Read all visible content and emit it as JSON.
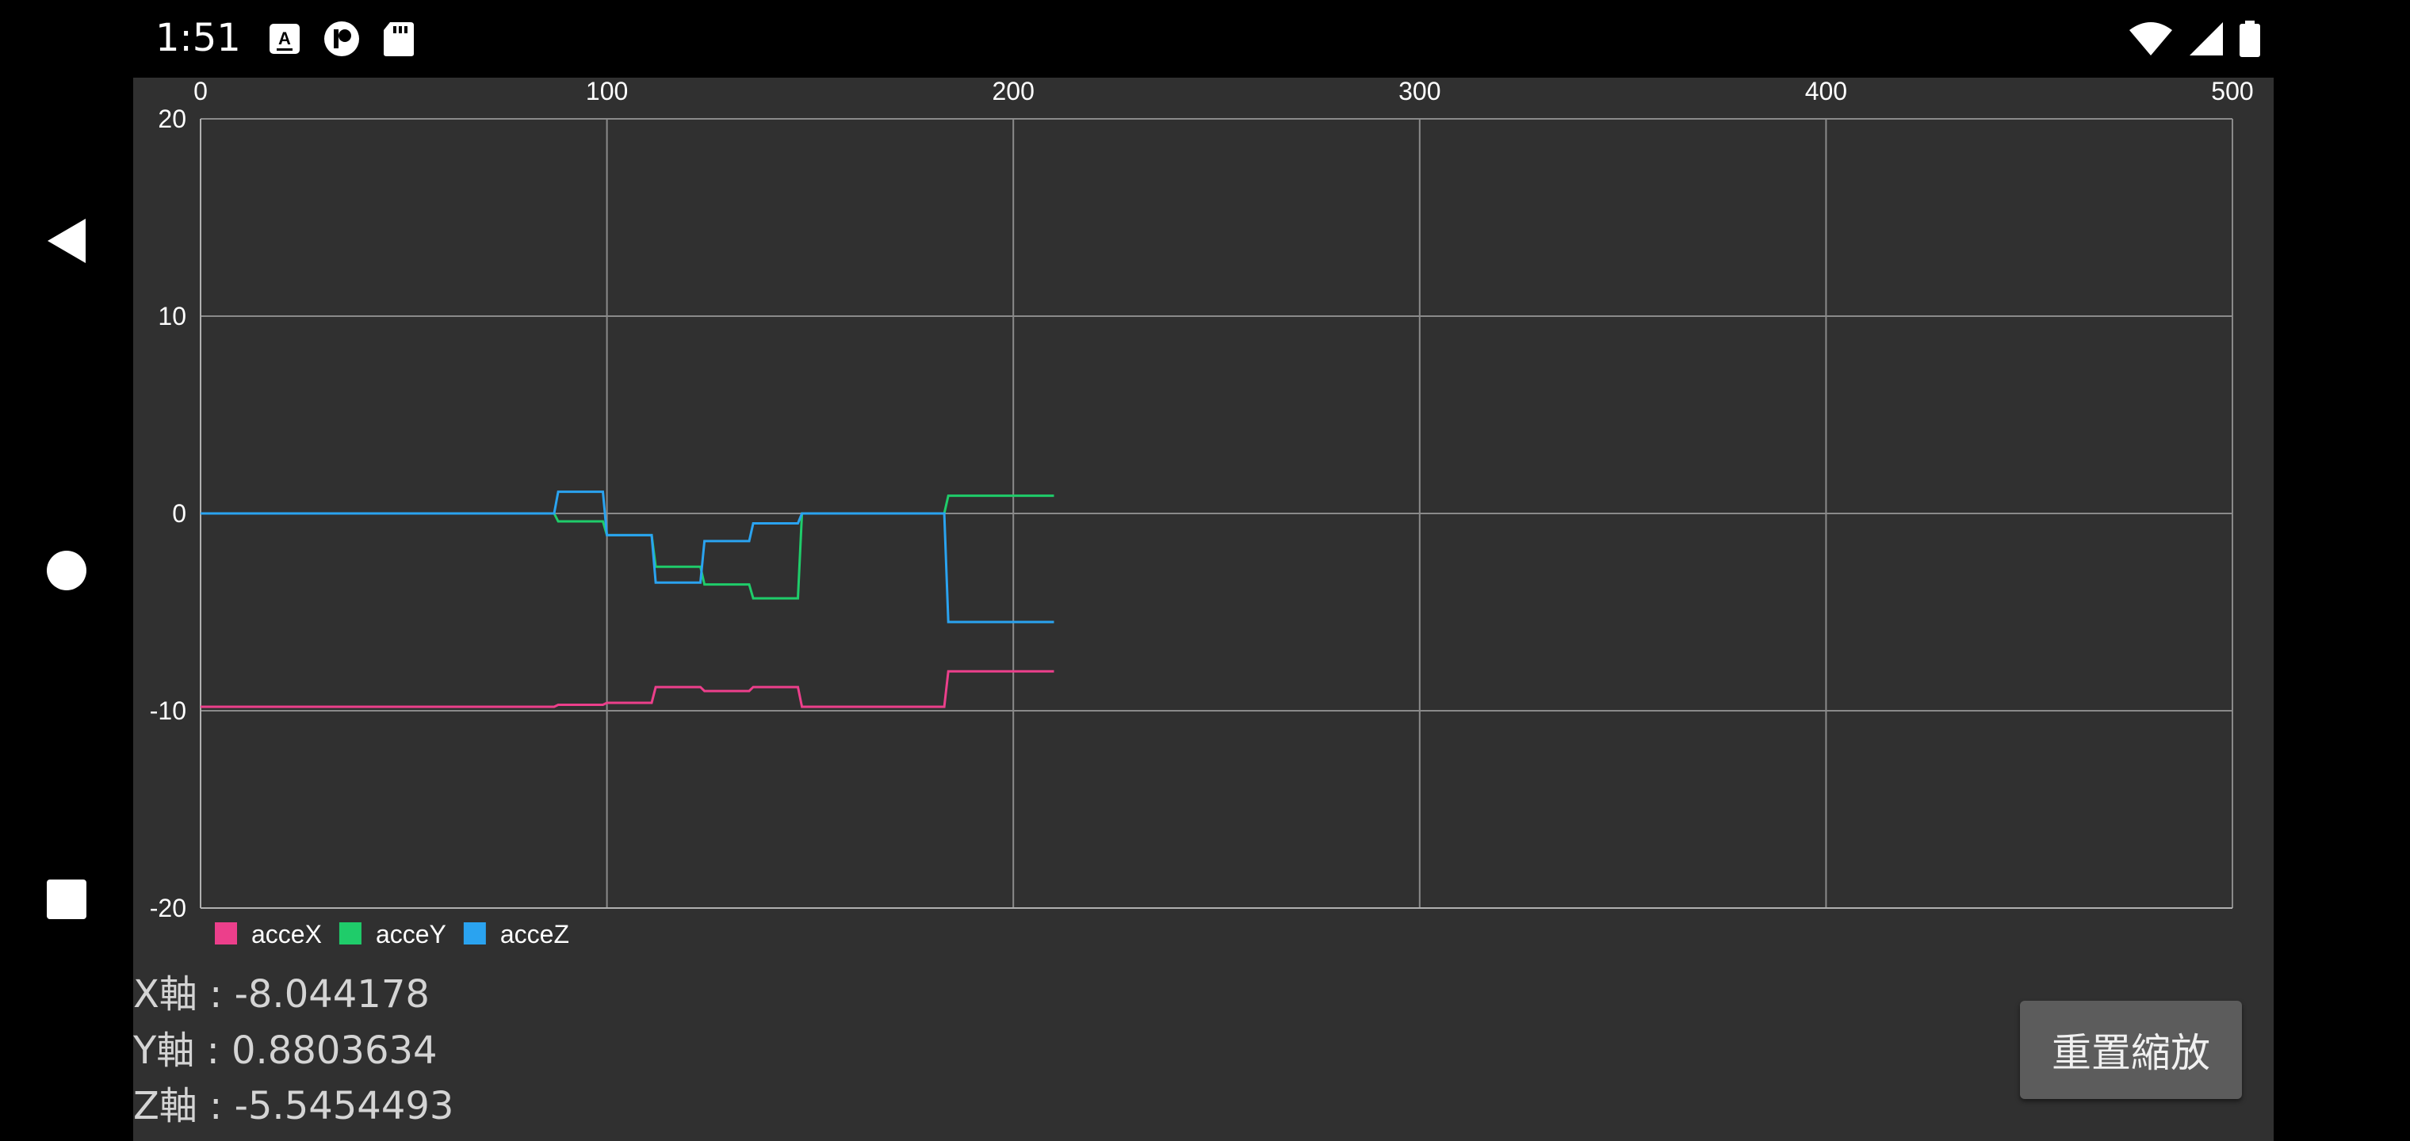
{
  "status_bar": {
    "time": "1:51",
    "icons": [
      "keyboard-a-icon",
      "circle-p-icon",
      "sd-card-icon",
      "wifi-icon",
      "cell-signal-icon",
      "battery-icon"
    ]
  },
  "nav_bar": {
    "icons": [
      "back-triangle-icon",
      "home-circle-icon",
      "recents-square-icon"
    ]
  },
  "colors": {
    "background": "#303030",
    "grid": "#8a8a8a",
    "acceX": "#ec3f8b",
    "acceY": "#1fcc6a",
    "acceZ": "#2aa3f0"
  },
  "chart_data": {
    "type": "line",
    "title": "",
    "xlabel": "",
    "ylabel": "",
    "xlim": [
      0,
      500
    ],
    "ylim": [
      -20,
      20
    ],
    "x_ticks": [
      "0",
      "100",
      "200",
      "300",
      "400",
      "500"
    ],
    "y_ticks": [
      "20",
      "10",
      "0",
      "-10",
      "-20"
    ],
    "grid": true,
    "legend_position": "bottom-left",
    "series": [
      {
        "name": "acceX",
        "color": "#ec3f8b",
        "points": [
          [
            0,
            -9.8
          ],
          [
            87,
            -9.8
          ],
          [
            88,
            -9.7
          ],
          [
            99,
            -9.7
          ],
          [
            100,
            -9.6
          ],
          [
            111,
            -9.6
          ],
          [
            112,
            -8.8
          ],
          [
            123,
            -8.8
          ],
          [
            124,
            -9.0
          ],
          [
            135,
            -9.0
          ],
          [
            136,
            -8.8
          ],
          [
            147,
            -8.8
          ],
          [
            148,
            -9.8
          ],
          [
            183,
            -9.8
          ],
          [
            184,
            -8.0
          ],
          [
            210,
            -8.0
          ]
        ]
      },
      {
        "name": "acceY",
        "color": "#1fcc6a",
        "points": [
          [
            0,
            0
          ],
          [
            87,
            0
          ],
          [
            88,
            -0.4
          ],
          [
            99,
            -0.4
          ],
          [
            100,
            -1.1
          ],
          [
            111,
            -1.1
          ],
          [
            112,
            -2.7
          ],
          [
            123,
            -2.7
          ],
          [
            124,
            -3.6
          ],
          [
            135,
            -3.6
          ],
          [
            136,
            -4.3
          ],
          [
            147,
            -4.3
          ],
          [
            148,
            0
          ],
          [
            183,
            0
          ],
          [
            184,
            0.9
          ],
          [
            210,
            0.9
          ]
        ]
      },
      {
        "name": "acceZ",
        "color": "#2aa3f0",
        "points": [
          [
            0,
            0
          ],
          [
            87,
            0
          ],
          [
            88,
            1.1
          ],
          [
            99,
            1.1
          ],
          [
            100,
            -1.1
          ],
          [
            111,
            -1.1
          ],
          [
            112,
            -3.5
          ],
          [
            123,
            -3.5
          ],
          [
            124,
            -1.4
          ],
          [
            135,
            -1.4
          ],
          [
            136,
            -0.5
          ],
          [
            147,
            -0.5
          ],
          [
            148,
            0
          ],
          [
            183,
            0
          ],
          [
            184,
            -5.5
          ],
          [
            210,
            -5.5
          ]
        ]
      }
    ]
  },
  "readouts": {
    "x": "X軸 : -8.044178",
    "y": "Y軸 : 0.8803634",
    "z": "Z軸 : -5.5454493"
  },
  "reset_button": {
    "label": "重置縮放"
  }
}
